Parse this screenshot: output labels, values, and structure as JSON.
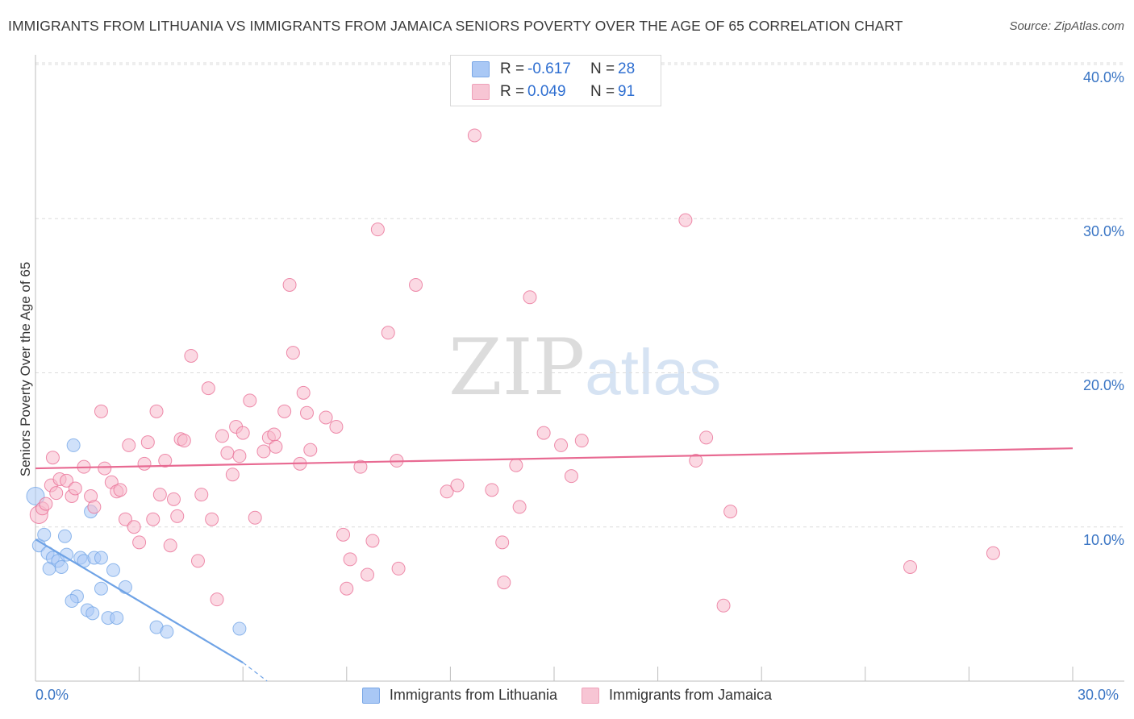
{
  "header": {
    "title": "IMMIGRANTS FROM LITHUANIA VS IMMIGRANTS FROM JAMAICA SENIORS POVERTY OVER THE AGE OF 65 CORRELATION CHART",
    "source": "Source: ZipAtlas.com"
  },
  "watermark": {
    "zip": "ZIP",
    "atlas": "atlas"
  },
  "legend": {
    "rows": [
      {
        "r_label": "R =",
        "r_value": "-0.617",
        "n_label": "N =",
        "n_value": "28",
        "color": "#a9c8f5"
      },
      {
        "r_label": "R =",
        "r_value": "0.049",
        "n_label": "N =",
        "n_value": "91",
        "color": "#f7b9cc"
      }
    ]
  },
  "bottom_legend": {
    "items": [
      {
        "label": "Immigrants from Lithuania",
        "color": "#a9c8f5"
      },
      {
        "label": "Immigrants from Jamaica",
        "color": "#f7b9cc"
      }
    ]
  },
  "axes": {
    "y_label": "Seniors Poverty Over the Age of 65",
    "x_min_label": "0.0%",
    "x_max_label": "30.0%",
    "y_ticks": [
      "40.0%",
      "30.0%",
      "20.0%",
      "10.0%"
    ]
  },
  "chart_data": {
    "type": "scatter",
    "title": "IMMIGRANTS FROM LITHUANIA VS IMMIGRANTS FROM JAMAICA SENIORS POVERTY OVER THE AGE OF 65 CORRELATION CHART",
    "xlabel": "",
    "ylabel": "Seniors Poverty Over the Age of 65",
    "xlim": [
      0,
      30
    ],
    "ylim": [
      0,
      40
    ],
    "x_ticks": [
      0,
      3,
      6,
      9,
      12,
      15,
      18,
      21,
      24,
      27,
      30
    ],
    "y_ticks": [
      10,
      20,
      30,
      40
    ],
    "grid": true,
    "series": [
      {
        "name": "Immigrants from Lithuania",
        "color": "#6fa3e6",
        "fill": "#a9c8f5",
        "r": -0.617,
        "n": 28,
        "trend": {
          "x": [
            0,
            6.0
          ],
          "y": [
            9.2,
            1.2
          ],
          "dash_to": [
            6.7,
            0.0
          ]
        },
        "points": [
          [
            0.0,
            12.0
          ],
          [
            0.1,
            8.8
          ],
          [
            0.25,
            9.5
          ],
          [
            0.35,
            8.3
          ],
          [
            0.4,
            7.3
          ],
          [
            0.5,
            8.0
          ],
          [
            0.65,
            7.8
          ],
          [
            0.75,
            7.4
          ],
          [
            0.85,
            9.4
          ],
          [
            0.9,
            8.2
          ],
          [
            1.1,
            15.3
          ],
          [
            1.2,
            5.5
          ],
          [
            1.05,
            5.2
          ],
          [
            1.3,
            8.0
          ],
          [
            1.4,
            7.8
          ],
          [
            1.5,
            4.6
          ],
          [
            1.6,
            11.0
          ],
          [
            1.65,
            4.4
          ],
          [
            1.7,
            8.0
          ],
          [
            1.9,
            6.0
          ],
          [
            1.9,
            8.0
          ],
          [
            2.1,
            4.1
          ],
          [
            2.25,
            7.2
          ],
          [
            2.35,
            4.1
          ],
          [
            2.6,
            6.1
          ],
          [
            3.5,
            3.5
          ],
          [
            3.8,
            3.2
          ],
          [
            5.9,
            3.4
          ]
        ]
      },
      {
        "name": "Immigrants from Jamaica",
        "color": "#e86a92",
        "fill": "#f7b9cc",
        "r": 0.049,
        "n": 91,
        "trend": {
          "x": [
            0,
            30
          ],
          "y": [
            13.8,
            15.1
          ]
        },
        "points": [
          [
            0.1,
            10.8
          ],
          [
            0.2,
            11.2
          ],
          [
            0.3,
            11.5
          ],
          [
            0.45,
            12.7
          ],
          [
            0.5,
            14.5
          ],
          [
            0.6,
            12.2
          ],
          [
            0.7,
            13.1
          ],
          [
            0.9,
            13.0
          ],
          [
            1.05,
            12.0
          ],
          [
            1.15,
            12.5
          ],
          [
            1.4,
            13.9
          ],
          [
            1.6,
            12.0
          ],
          [
            1.7,
            11.3
          ],
          [
            1.9,
            17.5
          ],
          [
            2.0,
            13.8
          ],
          [
            2.2,
            12.9
          ],
          [
            2.35,
            12.3
          ],
          [
            2.45,
            12.4
          ],
          [
            2.6,
            10.5
          ],
          [
            2.7,
            15.3
          ],
          [
            2.85,
            10.0
          ],
          [
            3.0,
            9.0
          ],
          [
            3.15,
            14.1
          ],
          [
            3.25,
            15.5
          ],
          [
            3.4,
            10.5
          ],
          [
            3.5,
            17.5
          ],
          [
            3.6,
            12.1
          ],
          [
            3.75,
            14.3
          ],
          [
            3.9,
            8.8
          ],
          [
            4.0,
            11.8
          ],
          [
            4.1,
            10.7
          ],
          [
            4.2,
            15.7
          ],
          [
            4.3,
            15.6
          ],
          [
            4.5,
            21.1
          ],
          [
            4.7,
            7.8
          ],
          [
            4.8,
            12.1
          ],
          [
            5.0,
            19.0
          ],
          [
            5.1,
            10.5
          ],
          [
            5.25,
            5.3
          ],
          [
            5.4,
            15.9
          ],
          [
            5.55,
            14.8
          ],
          [
            5.7,
            13.4
          ],
          [
            5.8,
            16.5
          ],
          [
            5.9,
            14.6
          ],
          [
            6.0,
            16.1
          ],
          [
            6.2,
            18.2
          ],
          [
            6.35,
            10.6
          ],
          [
            6.6,
            14.9
          ],
          [
            6.75,
            15.8
          ],
          [
            6.9,
            16.0
          ],
          [
            6.95,
            15.2
          ],
          [
            7.2,
            17.5
          ],
          [
            7.35,
            25.7
          ],
          [
            7.45,
            21.3
          ],
          [
            7.65,
            14.1
          ],
          [
            7.75,
            18.7
          ],
          [
            7.85,
            17.4
          ],
          [
            7.95,
            15.0
          ],
          [
            8.4,
            17.1
          ],
          [
            8.7,
            16.5
          ],
          [
            8.9,
            9.5
          ],
          [
            9.0,
            6.0
          ],
          [
            9.1,
            7.9
          ],
          [
            9.4,
            13.9
          ],
          [
            9.6,
            6.9
          ],
          [
            9.75,
            9.1
          ],
          [
            9.9,
            29.3
          ],
          [
            10.2,
            22.6
          ],
          [
            10.45,
            14.3
          ],
          [
            10.5,
            7.3
          ],
          [
            11.0,
            25.7
          ],
          [
            11.9,
            12.3
          ],
          [
            12.2,
            12.7
          ],
          [
            12.7,
            35.4
          ],
          [
            13.2,
            12.4
          ],
          [
            13.5,
            9.0
          ],
          [
            13.55,
            6.4
          ],
          [
            13.9,
            14.0
          ],
          [
            14.0,
            11.3
          ],
          [
            14.3,
            24.9
          ],
          [
            14.7,
            16.1
          ],
          [
            15.2,
            15.3
          ],
          [
            15.5,
            13.3
          ],
          [
            15.8,
            15.6
          ],
          [
            18.8,
            29.9
          ],
          [
            19.1,
            14.3
          ],
          [
            19.4,
            15.8
          ],
          [
            19.9,
            4.9
          ],
          [
            20.1,
            11.0
          ],
          [
            25.3,
            7.4
          ],
          [
            27.7,
            8.3
          ]
        ]
      }
    ]
  }
}
